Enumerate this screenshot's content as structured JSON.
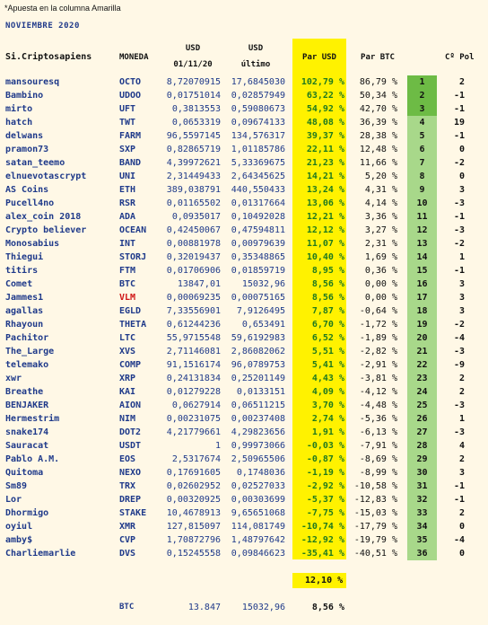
{
  "note": "*Apuesta en la columna Amarilla",
  "month": "NOVIEMBRE 2020",
  "headers": {
    "user": "Si.Criptosapiens",
    "coin": "MONEDA",
    "usd1_top": "USD",
    "usd1_bottom": "01/11/20",
    "usd2_top": "USD",
    "usd2_bottom": "último",
    "par_usd": "Par USD",
    "par_btc": "Par BTC",
    "pol": "Cº Pol"
  },
  "colors": {
    "rank_top3": "#6dbb45",
    "rank_rest": "#a8d88a",
    "highlight": "#fff200",
    "background": "#fff8e6"
  },
  "rows": [
    {
      "user": "mansouresq",
      "coin": "OCTO",
      "usd1": "8,72070915",
      "usd2": "17,6845030",
      "par_usd": "102,79 %",
      "par_btc": "86,79 %",
      "rank": "1",
      "pol": "2"
    },
    {
      "user": "Bambino",
      "coin": "UDOO",
      "usd1": "0,01751014",
      "usd2": "0,02857949",
      "par_usd": "63,22 %",
      "par_btc": "50,34 %",
      "rank": "2",
      "pol": "-1"
    },
    {
      "user": "mirto",
      "coin": "UFT",
      "usd1": "0,3813553",
      "usd2": "0,59080673",
      "par_usd": "54,92 %",
      "par_btc": "42,70 %",
      "rank": "3",
      "pol": "-1"
    },
    {
      "user": "hatch",
      "coin": "TWT",
      "usd1": "0,0653319",
      "usd2": "0,09674133",
      "par_usd": "48,08 %",
      "par_btc": "36,39 %",
      "rank": "4",
      "pol": "19"
    },
    {
      "user": "delwans",
      "coin": "FARM",
      "usd1": "96,5597145",
      "usd2": "134,576317",
      "par_usd": "39,37 %",
      "par_btc": "28,38 %",
      "rank": "5",
      "pol": "-1"
    },
    {
      "user": "pramon73",
      "coin": "SXP",
      "usd1": "0,82865719",
      "usd2": "1,01185786",
      "par_usd": "22,11 %",
      "par_btc": "12,48 %",
      "rank": "6",
      "pol": "0"
    },
    {
      "user": "satan_teemo",
      "coin": "BAND",
      "usd1": "4,39972621",
      "usd2": "5,33369675",
      "par_usd": "21,23 %",
      "par_btc": "11,66 %",
      "rank": "7",
      "pol": "-2"
    },
    {
      "user": "elnuevotascrypt",
      "coin": "UNI",
      "usd1": "2,31449433",
      "usd2": "2,64345625",
      "par_usd": "14,21 %",
      "par_btc": "5,20 %",
      "rank": "8",
      "pol": "0"
    },
    {
      "user": "AS Coins",
      "coin": "ETH",
      "usd1": "389,038791",
      "usd2": "440,550433",
      "par_usd": "13,24 %",
      "par_btc": "4,31 %",
      "rank": "9",
      "pol": "3"
    },
    {
      "user": "Pucell4no",
      "coin": "RSR",
      "usd1": "0,01165502",
      "usd2": "0,01317664",
      "par_usd": "13,06 %",
      "par_btc": "4,14 %",
      "rank": "10",
      "pol": "-3"
    },
    {
      "user": "alex_coin 2018",
      "coin": "ADA",
      "usd1": "0,0935017",
      "usd2": "0,10492028",
      "par_usd": "12,21 %",
      "par_btc": "3,36 %",
      "rank": "11",
      "pol": "-1"
    },
    {
      "user": "Crypto believer",
      "coin": "OCEAN",
      "usd1": "0,42450067",
      "usd2": "0,47594811",
      "par_usd": "12,12 %",
      "par_btc": "3,27 %",
      "rank": "12",
      "pol": "-3"
    },
    {
      "user": "Monosabius",
      "coin": "INT",
      "usd1": "0,00881978",
      "usd2": "0,00979639",
      "par_usd": "11,07 %",
      "par_btc": "2,31 %",
      "rank": "13",
      "pol": "-2"
    },
    {
      "user": "Thiegui",
      "coin": "STORJ",
      "usd1": "0,32019437",
      "usd2": "0,35348865",
      "par_usd": "10,40 %",
      "par_btc": "1,69 %",
      "rank": "14",
      "pol": "1"
    },
    {
      "user": "titirs",
      "coin": "FTM",
      "usd1": "0,01706906",
      "usd2": "0,01859719",
      "par_usd": "8,95 %",
      "par_btc": "0,36 %",
      "rank": "15",
      "pol": "-1"
    },
    {
      "user": "Comet",
      "coin": "BTC",
      "usd1": "13847,01",
      "usd2": "15032,96",
      "par_usd": "8,56 %",
      "par_btc": "0,00 %",
      "rank": "16",
      "pol": "3"
    },
    {
      "user": "Jammes1",
      "coin": "VLM",
      "usd1": "0,00069235",
      "usd2": "0,00075165",
      "par_usd": "8,56 %",
      "par_btc": "0,00 %",
      "rank": "17",
      "pol": "3",
      "coin_red": true
    },
    {
      "user": "agallas",
      "coin": "EGLD",
      "usd1": "7,33556901",
      "usd2": "7,9126495",
      "par_usd": "7,87 %",
      "par_btc": "-0,64 %",
      "rank": "18",
      "pol": "3"
    },
    {
      "user": "Rhayoun",
      "coin": "THETA",
      "usd1": "0,61244236",
      "usd2": "0,653491",
      "par_usd": "6,70 %",
      "par_btc": "-1,72 %",
      "rank": "19",
      "pol": "-2"
    },
    {
      "user": "Pachitor",
      "coin": "LTC",
      "usd1": "55,9715548",
      "usd2": "59,6192983",
      "par_usd": "6,52 %",
      "par_btc": "-1,89 %",
      "rank": "20",
      "pol": "-4"
    },
    {
      "user": "The_Large",
      "coin": "XVS",
      "usd1": "2,71146081",
      "usd2": "2,86082062",
      "par_usd": "5,51 %",
      "par_btc": "-2,82 %",
      "rank": "21",
      "pol": "-3"
    },
    {
      "user": "telemako",
      "coin": "COMP",
      "usd1": "91,1516174",
      "usd2": "96,0789753",
      "par_usd": "5,41 %",
      "par_btc": "-2,91 %",
      "rank": "22",
      "pol": "-9"
    },
    {
      "user": "xwr",
      "coin": "XRP",
      "usd1": "0,24131834",
      "usd2": "0,25201149",
      "par_usd": "4,43 %",
      "par_btc": "-3,81 %",
      "rank": "23",
      "pol": "2"
    },
    {
      "user": "Breathe",
      "coin": "KAI",
      "usd1": "0,01279228",
      "usd2": "0,0133151",
      "par_usd": "4,09 %",
      "par_btc": "-4,12 %",
      "rank": "24",
      "pol": "2"
    },
    {
      "user": "BENJAKER",
      "coin": "AION",
      "usd1": "0,0627914",
      "usd2": "0,06511215",
      "par_usd": "3,70 %",
      "par_btc": "-4,48 %",
      "rank": "25",
      "pol": "-3"
    },
    {
      "user": "Hermestrim",
      "coin": "NIM",
      "usd1": "0,00231075",
      "usd2": "0,00237408",
      "par_usd": "2,74 %",
      "par_btc": "-5,36 %",
      "rank": "26",
      "pol": "1"
    },
    {
      "user": "snake174",
      "coin": "DOT2",
      "usd1": "4,21779661",
      "usd2": "4,29823656",
      "par_usd": "1,91 %",
      "par_btc": "-6,13 %",
      "rank": "27",
      "pol": "-3"
    },
    {
      "user": "Sauracat",
      "coin": "USDT",
      "usd1": "1",
      "usd2": "0,99973066",
      "par_usd": "-0,03 %",
      "par_btc": "-7,91 %",
      "rank": "28",
      "pol": "4"
    },
    {
      "user": "Pablo A.M.",
      "coin": "EOS",
      "usd1": "2,5317674",
      "usd2": "2,50965506",
      "par_usd": "-0,87 %",
      "par_btc": "-8,69 %",
      "rank": "29",
      "pol": "2"
    },
    {
      "user": "Quitoma",
      "coin": "NEXO",
      "usd1": "0,17691605",
      "usd2": "0,1748036",
      "par_usd": "-1,19 %",
      "par_btc": "-8,99 %",
      "rank": "30",
      "pol": "3"
    },
    {
      "user": "Sm89",
      "coin": "TRX",
      "usd1": "0,02602952",
      "usd2": "0,02527033",
      "par_usd": "-2,92 %",
      "par_btc": "-10,58 %",
      "rank": "31",
      "pol": "-1"
    },
    {
      "user": "Lor",
      "coin": "DREP",
      "usd1": "0,00320925",
      "usd2": "0,00303699",
      "par_usd": "-5,37 %",
      "par_btc": "-12,83 %",
      "rank": "32",
      "pol": "-1"
    },
    {
      "user": "Dhormigo",
      "coin": "STAKE",
      "usd1": "10,4678913",
      "usd2": "9,65651068",
      "par_usd": "-7,75 %",
      "par_btc": "-15,03 %",
      "rank": "33",
      "pol": "2"
    },
    {
      "user": "oyiul",
      "coin": "XMR",
      "usd1": "127,815097",
      "usd2": "114,081749",
      "par_usd": "-10,74 %",
      "par_btc": "-17,79 %",
      "rank": "34",
      "pol": "0"
    },
    {
      "user": "amby$",
      "coin": "CVP",
      "usd1": "1,70872796",
      "usd2": "1,48797642",
      "par_usd": "-12,92 %",
      "par_btc": "-19,79 %",
      "rank": "35",
      "pol": "-4"
    },
    {
      "user": "Charliemarlie",
      "coin": "DVS",
      "usd1": "0,15245558",
      "usd2": "0,09846623",
      "par_usd": "-35,41 %",
      "par_btc": "-40,51 %",
      "rank": "36",
      "pol": "0"
    }
  ],
  "average": "12,10 %",
  "btc_footer": {
    "label": "BTC",
    "usd1": "13.847",
    "usd2": "15032,96",
    "par_usd": "8,56 %"
  }
}
